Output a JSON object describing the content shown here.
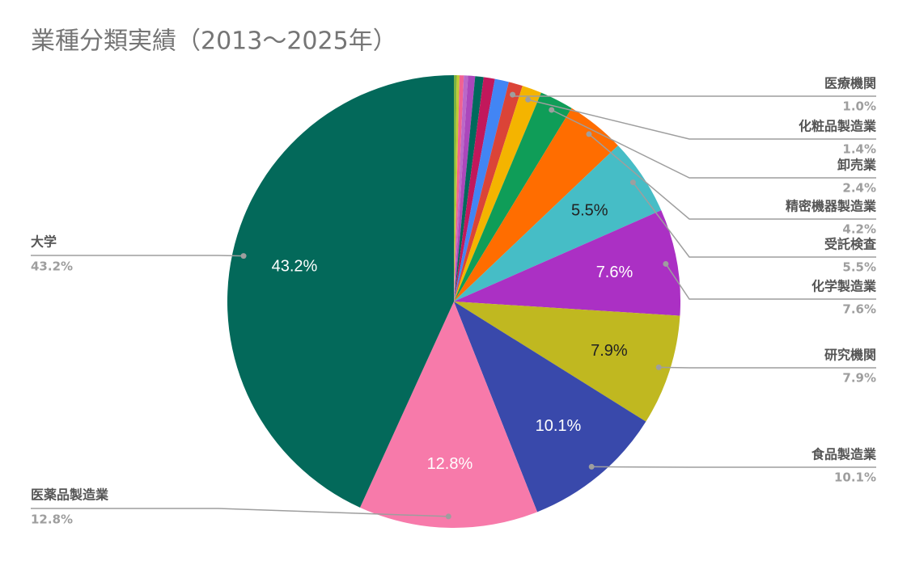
{
  "chart_data": {
    "type": "pie",
    "title": "業種分類実績（2013～2025年）",
    "categories": [
      null,
      null,
      null,
      null,
      null,
      null,
      null,
      null,
      "医療機関",
      "化粧品製造業",
      "卸売業",
      "精密機器製造業",
      "受託検査",
      "化学製造業",
      "研究機関",
      "食品製造業",
      "医薬品製造業",
      "大学"
    ],
    "values": [
      0.2,
      0.2,
      0.3,
      0.3,
      0.5,
      0.6,
      0.8,
      1.0,
      1.0,
      1.4,
      2.4,
      4.2,
      5.5,
      7.6,
      7.9,
      10.1,
      12.8,
      43.2
    ],
    "value_labels": [
      null,
      null,
      null,
      null,
      null,
      null,
      null,
      null,
      "1.0%",
      "1.4%",
      "2.4%",
      "4.2%",
      "5.5%",
      "7.6%",
      "7.9%",
      "10.1%",
      "12.8%",
      "43.2%"
    ],
    "colors": [
      "#7cb342",
      "#c0ca33",
      "#f06292",
      "#ba68c8",
      "#ab47bc",
      "#00695c",
      "#c2185b",
      "#4285f4",
      "#db4437",
      "#f4b400",
      "#0f9d58",
      "#ff6d00",
      "#46bdc6",
      "#ab30c4",
      "#c0b820",
      "#3949ab",
      "#f77aaa",
      "#03695a"
    ]
  }
}
